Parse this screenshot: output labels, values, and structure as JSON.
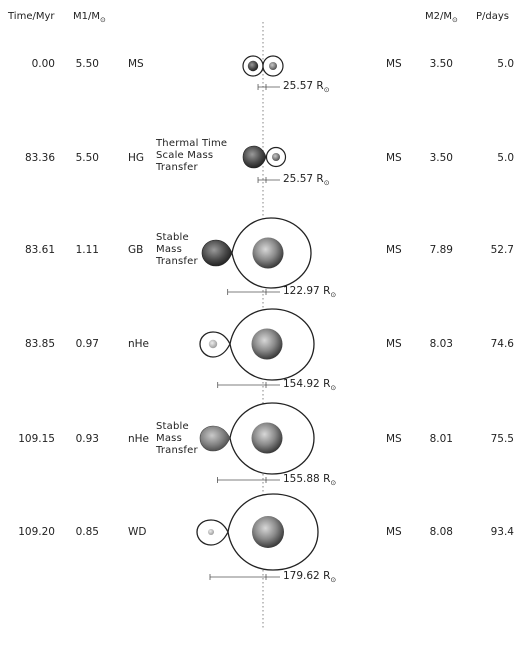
{
  "headers": {
    "time": "Time/Myr",
    "m1": "M1/M",
    "m2": "M2/M",
    "period": "P/days"
  },
  "unit_symbol": "R",
  "rows": [
    {
      "time": "0.00",
      "m1": "5.50",
      "type1": "MS",
      "note": [],
      "type2": "MS",
      "m2": "3.50",
      "period": "5.0",
      "separation": "25.57"
    },
    {
      "time": "83.36",
      "m1": "5.50",
      "type1": "HG",
      "note": [
        "Thermal Time",
        "Scale Mass",
        "Transfer"
      ],
      "type2": "MS",
      "m2": "3.50",
      "period": "5.0",
      "separation": "25.57"
    },
    {
      "time": "83.61",
      "m1": "1.11",
      "type1": "GB",
      "note": [
        "Stable",
        "Mass",
        "Transfer"
      ],
      "type2": "MS",
      "m2": "7.89",
      "period": "52.7",
      "separation": "122.97"
    },
    {
      "time": "83.85",
      "m1": "0.97",
      "type1": "nHe",
      "note": [],
      "type2": "MS",
      "m2": "8.03",
      "period": "74.6",
      "separation": "154.92"
    },
    {
      "time": "109.15",
      "m1": "0.93",
      "type1": "nHe",
      "note": [
        "Stable",
        "Mass",
        "Transfer"
      ],
      "type2": "MS",
      "m2": "8.01",
      "period": "75.5",
      "separation": "155.88"
    },
    {
      "time": "109.20",
      "m1": "0.85",
      "type1": "WD",
      "note": [],
      "type2": "MS",
      "m2": "8.08",
      "period": "93.4",
      "separation": "179.62"
    }
  ]
}
